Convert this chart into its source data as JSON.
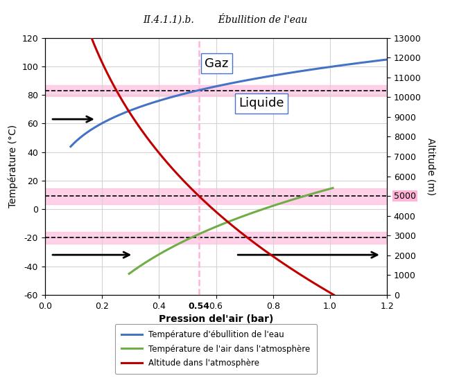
{
  "title": "II.4.1.1).b.        Ébullition de l'eau",
  "xlabel": "Pression del'air (bar)",
  "ylabel_left": "Température (°C)",
  "ylabel_right": "Altitude (m)",
  "xlim": [
    0.0,
    1.2
  ],
  "ylim_left": [
    -60,
    120
  ],
  "ylim_right": [
    0,
    13000
  ],
  "xticks": [
    0.0,
    0.2,
    0.4,
    0.6,
    0.8,
    1.0,
    1.2
  ],
  "yticks_left": [
    -60,
    -40,
    -20,
    0,
    20,
    40,
    60,
    80,
    100,
    120
  ],
  "yticks_right": [
    0,
    1000,
    2000,
    3000,
    4000,
    5000,
    6000,
    7000,
    8000,
    9000,
    10000,
    11000,
    12000,
    13000
  ],
  "blue_color": "#4472C4",
  "green_color": "#70AD47",
  "red_color": "#C00000",
  "pink_highlight": "#FFB3D9",
  "vline_x": 0.54,
  "vline_label": "0.54",
  "hline1_temp": 83,
  "hline2_temp": -20,
  "hline3_alt": 5000,
  "label_gaz": "Gaz",
  "label_liquide": "Liquide",
  "legend_blue": "Température d'ébullition de l'eau",
  "legend_green": "Température de l'air dans l'atmosphère",
  "legend_red": "Altitude dans l'atmosphère",
  "title_fontsize": 10,
  "axis_fontsize": 10,
  "tick_fontsize": 9
}
